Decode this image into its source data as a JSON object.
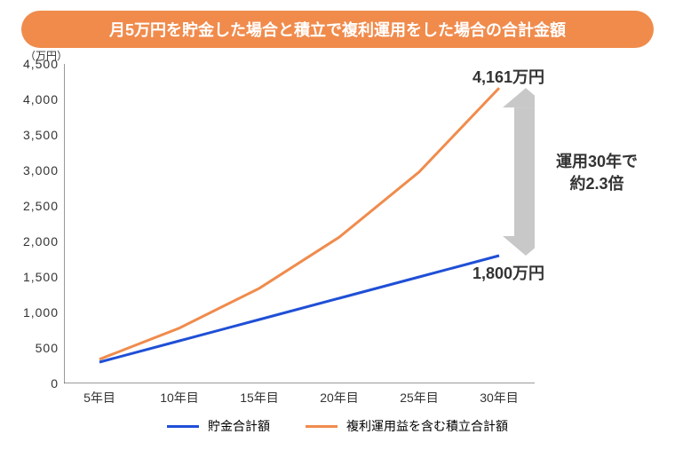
{
  "title": {
    "text": "月5万円を貯金した場合と積立で複利運用をした場合の合計金額",
    "bg_color": "#f08b4c",
    "text_color": "#ffffff",
    "font_size": 18
  },
  "chart": {
    "type": "line",
    "y_unit_label": "（万円）",
    "background_color": "#ffffff",
    "axis_color": "#333333",
    "tick_font_size": 14,
    "ylim": [
      0,
      4500
    ],
    "ytick_step": 500,
    "yticks": [
      0,
      500,
      1000,
      1500,
      2000,
      2500,
      3000,
      3500,
      4000,
      4500
    ],
    "ytick_labels": [
      "0",
      "500",
      "1,000",
      "1,500",
      "2,000",
      "2,500",
      "3,000",
      "3,500",
      "4,000",
      "4,500"
    ],
    "x_categories": [
      "5年目",
      "10年目",
      "15年目",
      "20年目",
      "25年目",
      "30年目"
    ],
    "series": [
      {
        "name": "savings",
        "label": "貯金合計額",
        "color": "#1f4fd6",
        "line_width": 3,
        "values": [
          300,
          600,
          900,
          1200,
          1500,
          1800
        ]
      },
      {
        "name": "compound",
        "label": "複利運用益を含む積立合計額",
        "color": "#f08b4c",
        "line_width": 3,
        "values": [
          340,
          780,
          1340,
          2060,
          2980,
          4161
        ]
      }
    ],
    "callouts": {
      "compound_end": {
        "text": "4,161万円",
        "color": "#333333",
        "font_size": 18
      },
      "savings_end": {
        "text": "1,800万円",
        "color": "#333333",
        "font_size": 18
      }
    },
    "arrow": {
      "color": "#c8c8c8",
      "width": 26
    },
    "side_note": {
      "line1": "運用30年で",
      "line2": "約2.3倍",
      "font_size": 18,
      "color": "#333333"
    }
  },
  "legend": {
    "font_size": 14
  }
}
